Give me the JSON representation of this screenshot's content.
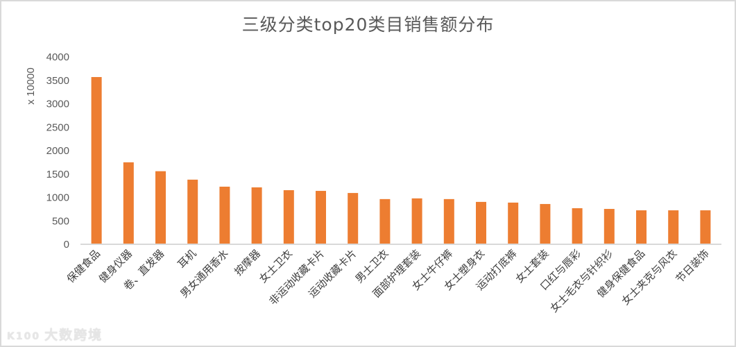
{
  "chart_data": {
    "type": "bar",
    "title": "三级分类top20类目销售额分布",
    "xlabel": "",
    "ylabel": "x 10000",
    "ylim": [
      0,
      4000
    ],
    "yticks": [
      0,
      500,
      1000,
      1500,
      2000,
      2500,
      3000,
      3500,
      4000
    ],
    "grid": false,
    "legend": "none",
    "bar_color": "#ED7D31",
    "categories": [
      "保健食品",
      "健身仪器",
      "卷、直发器",
      "耳机",
      "男女通用香水",
      "按摩器",
      "女士卫衣",
      "非运动收藏卡片",
      "运动收藏卡片",
      "男士卫衣",
      "面部护理套装",
      "女士牛仔裤",
      "女士塑身衣",
      "运动打底裤",
      "女士套装",
      "口红与唇彩",
      "女士毛衣与针织衫",
      "健身保健食品",
      "女士夹克与风衣",
      "节日装饰"
    ],
    "values": [
      3570,
      1750,
      1560,
      1380,
      1230,
      1215,
      1155,
      1140,
      1095,
      965,
      980,
      965,
      905,
      890,
      860,
      770,
      755,
      725,
      725,
      725
    ]
  },
  "watermark": {
    "text": "大数跨境",
    "logo": "K100"
  }
}
